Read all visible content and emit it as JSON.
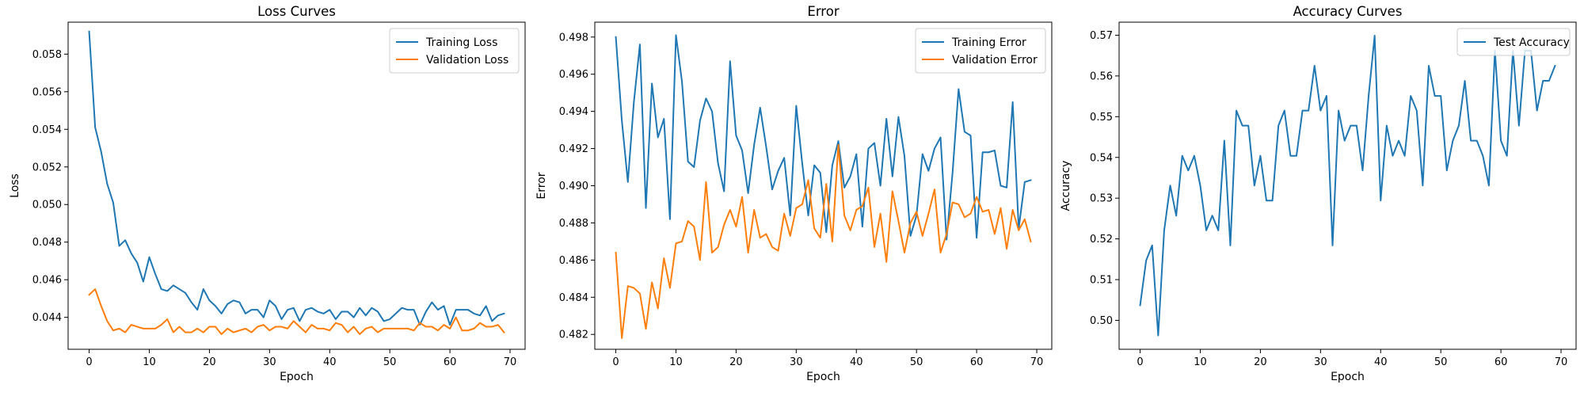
{
  "chart_data": [
    {
      "type": "line",
      "title": "Loss Curves",
      "xlabel": "Epoch",
      "ylabel": "Loss",
      "xlim": [
        -3.5,
        72.5
      ],
      "ylim": [
        0.0423,
        0.0597
      ],
      "xticks": [
        0,
        10,
        20,
        30,
        40,
        50,
        60,
        70
      ],
      "xtick_labels": [
        "0",
        "10",
        "20",
        "30",
        "40",
        "50",
        "60",
        "70"
      ],
      "yticks": [
        0.044,
        0.046,
        0.048,
        0.05,
        0.052,
        0.054,
        0.056,
        0.058
      ],
      "ytick_labels": [
        "0.044",
        "0.046",
        "0.048",
        "0.050",
        "0.052",
        "0.054",
        "0.056",
        "0.058"
      ],
      "grid": false,
      "legend": "top-right",
      "series": [
        {
          "name": "Training Loss",
          "color": "#1f77b4",
          "values": [
            0.0592,
            0.0541,
            0.0528,
            0.0511,
            0.0501,
            0.0478,
            0.0481,
            0.0474,
            0.0469,
            0.0459,
            0.0472,
            0.0463,
            0.0455,
            0.0454,
            0.0457,
            0.0455,
            0.0453,
            0.0448,
            0.0444,
            0.0455,
            0.0449,
            0.0446,
            0.0442,
            0.0447,
            0.0449,
            0.0448,
            0.0442,
            0.0444,
            0.0444,
            0.044,
            0.0449,
            0.0446,
            0.0439,
            0.0444,
            0.0445,
            0.0438,
            0.0444,
            0.0445,
            0.0443,
            0.0442,
            0.0444,
            0.0439,
            0.0443,
            0.0443,
            0.044,
            0.0445,
            0.0441,
            0.0445,
            0.0443,
            0.0438,
            0.0439,
            0.0442,
            0.0445,
            0.0444,
            0.0444,
            0.0436,
            0.0443,
            0.0448,
            0.0444,
            0.0446,
            0.0436,
            0.0444,
            0.0444,
            0.0444,
            0.0442,
            0.0441,
            0.0446,
            0.0438,
            0.0441,
            0.0442
          ]
        },
        {
          "name": "Validation Loss",
          "color": "#ff7f0e",
          "values": [
            0.0452,
            0.0455,
            0.0446,
            0.0438,
            0.0433,
            0.0434,
            0.0432,
            0.0436,
            0.0435,
            0.0434,
            0.0434,
            0.0434,
            0.0436,
            0.0439,
            0.0432,
            0.0435,
            0.0432,
            0.0432,
            0.0434,
            0.0432,
            0.0435,
            0.0435,
            0.0431,
            0.0434,
            0.0432,
            0.0433,
            0.0434,
            0.0432,
            0.0435,
            0.0436,
            0.0433,
            0.0435,
            0.0435,
            0.0434,
            0.0438,
            0.0435,
            0.0432,
            0.0436,
            0.0434,
            0.0434,
            0.0433,
            0.0437,
            0.0436,
            0.0432,
            0.0435,
            0.0431,
            0.0434,
            0.0435,
            0.0432,
            0.0434,
            0.0434,
            0.0434,
            0.0434,
            0.0434,
            0.0433,
            0.0437,
            0.0435,
            0.0435,
            0.0433,
            0.0436,
            0.0434,
            0.044,
            0.0433,
            0.0433,
            0.0434,
            0.0437,
            0.0435,
            0.0435,
            0.0436,
            0.0432
          ]
        }
      ]
    },
    {
      "type": "line",
      "title": "Error",
      "xlabel": "Epoch",
      "ylabel": "Error",
      "xlim": [
        -3.5,
        72.5
      ],
      "ylim": [
        0.4812,
        0.4988
      ],
      "xticks": [
        0,
        10,
        20,
        30,
        40,
        50,
        60,
        70
      ],
      "xtick_labels": [
        "0",
        "10",
        "20",
        "30",
        "40",
        "50",
        "60",
        "70"
      ],
      "yticks": [
        0.482,
        0.484,
        0.486,
        0.488,
        0.49,
        0.492,
        0.494,
        0.496,
        0.498
      ],
      "ytick_labels": [
        "0.482",
        "0.484",
        "0.486",
        "0.488",
        "0.490",
        "0.492",
        "0.494",
        "0.496",
        "0.498"
      ],
      "grid": false,
      "legend": "top-right",
      "series": [
        {
          "name": "Training Error",
          "color": "#1f77b4",
          "values": [
            0.498,
            0.4935,
            0.4902,
            0.4945,
            0.4976,
            0.4888,
            0.4955,
            0.4926,
            0.4936,
            0.4882,
            0.4981,
            0.4956,
            0.4913,
            0.491,
            0.4935,
            0.4947,
            0.494,
            0.4912,
            0.4897,
            0.4967,
            0.4927,
            0.4919,
            0.4896,
            0.4922,
            0.4942,
            0.4921,
            0.4898,
            0.4908,
            0.4915,
            0.4884,
            0.4943,
            0.4912,
            0.4884,
            0.4911,
            0.4907,
            0.4875,
            0.4911,
            0.4924,
            0.4899,
            0.4905,
            0.4917,
            0.4878,
            0.492,
            0.4923,
            0.49,
            0.4936,
            0.4905,
            0.4937,
            0.4916,
            0.4873,
            0.4884,
            0.4917,
            0.4908,
            0.492,
            0.4926,
            0.4871,
            0.4907,
            0.4952,
            0.4929,
            0.4927,
            0.4872,
            0.4918,
            0.4918,
            0.4919,
            0.49,
            0.4899,
            0.4945,
            0.4877,
            0.4902,
            0.4903
          ]
        },
        {
          "name": "Validation Error",
          "color": "#ff7f0e",
          "values": [
            0.4864,
            0.4818,
            0.4846,
            0.4845,
            0.4842,
            0.4823,
            0.4848,
            0.4834,
            0.4861,
            0.4845,
            0.4869,
            0.487,
            0.4881,
            0.4878,
            0.486,
            0.4902,
            0.4864,
            0.4867,
            0.4879,
            0.4887,
            0.4878,
            0.4894,
            0.4864,
            0.4887,
            0.4872,
            0.4874,
            0.4867,
            0.4865,
            0.4885,
            0.4873,
            0.4888,
            0.489,
            0.4903,
            0.4877,
            0.4872,
            0.4901,
            0.487,
            0.4922,
            0.4884,
            0.4876,
            0.4887,
            0.4889,
            0.4899,
            0.4867,
            0.4885,
            0.4859,
            0.4897,
            0.4881,
            0.4864,
            0.488,
            0.4886,
            0.4873,
            0.4885,
            0.4898,
            0.4864,
            0.4874,
            0.4891,
            0.489,
            0.4883,
            0.4885,
            0.4894,
            0.4886,
            0.4887,
            0.4874,
            0.4888,
            0.4866,
            0.4887,
            0.4876,
            0.4882,
            0.487
          ]
        }
      ]
    },
    {
      "type": "line",
      "title": "Accuracy Curves",
      "xlabel": "Epoch",
      "ylabel": "Accuracy",
      "xlim": [
        -3.5,
        72.5
      ],
      "ylim": [
        0.4929,
        0.5732
      ],
      "xticks": [
        0,
        10,
        20,
        30,
        40,
        50,
        60,
        70
      ],
      "xtick_labels": [
        "0",
        "10",
        "20",
        "30",
        "40",
        "50",
        "60",
        "70"
      ],
      "yticks": [
        0.5,
        0.51,
        0.52,
        0.53,
        0.54,
        0.55,
        0.56,
        0.57
      ],
      "ytick_labels": [
        "0.50",
        "0.51",
        "0.52",
        "0.53",
        "0.54",
        "0.55",
        "0.56",
        "0.57"
      ],
      "grid": false,
      "legend": "top-right",
      "series": [
        {
          "name": "Test Accuracy",
          "color": "#1f77b4",
          "values": [
            0.5037,
            0.5147,
            0.5184,
            0.4963,
            0.5221,
            0.5331,
            0.5257,
            0.5404,
            0.5368,
            0.5404,
            0.5331,
            0.5221,
            0.5257,
            0.5221,
            0.5441,
            0.5184,
            0.5515,
            0.5478,
            0.5478,
            0.5331,
            0.5404,
            0.5294,
            0.5294,
            0.5478,
            0.5515,
            0.5404,
            0.5404,
            0.5515,
            0.5515,
            0.5625,
            0.5515,
            0.5551,
            0.5184,
            0.5515,
            0.5441,
            0.5478,
            0.5478,
            0.5368,
            0.5551,
            0.5699,
            0.5294,
            0.5478,
            0.5404,
            0.5441,
            0.5404,
            0.5551,
            0.5515,
            0.5331,
            0.5625,
            0.5551,
            0.5551,
            0.5368,
            0.5441,
            0.5478,
            0.5588,
            0.5441,
            0.5441,
            0.5404,
            0.5331,
            0.5662,
            0.5441,
            0.5404,
            0.5662,
            0.5478,
            0.5662,
            0.5662,
            0.5515,
            0.5588,
            0.5588,
            0.5625
          ]
        }
      ]
    }
  ]
}
